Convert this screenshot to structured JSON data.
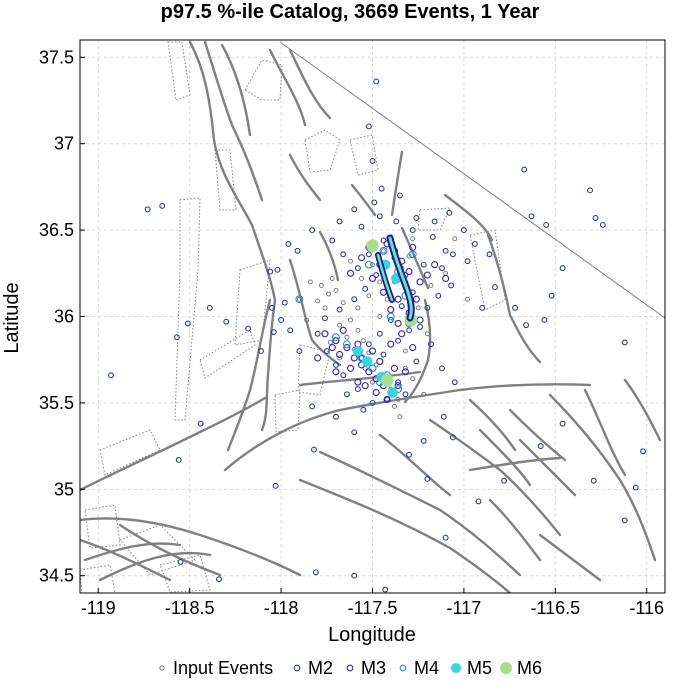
{
  "chart_data": {
    "type": "scatter",
    "title": "p97.5 %-ile Catalog, 3669 Events, 1 Year",
    "xlabel": "Longitude",
    "ylabel": "Latitude",
    "xlim": [
      -119.1,
      -115.9
    ],
    "ylim": [
      34.4,
      37.6
    ],
    "xticks": [
      -119,
      -118.5,
      -118,
      -117.5,
      -117,
      -116.5,
      -116
    ],
    "yticks": [
      34.5,
      35,
      35.5,
      36,
      36.5,
      37,
      37.5
    ],
    "grid": true,
    "legend": {
      "placement": "bottom"
    },
    "series": [
      {
        "name": "Input Events",
        "marker": "small-open-circle",
        "color": "#707070",
        "points": [
          [
            -117.78,
            36.18
          ],
          [
            -117.74,
            36.13
          ],
          [
            -117.72,
            36.22
          ],
          [
            -117.8,
            36.09
          ],
          [
            -117.76,
            36.05
          ],
          [
            -117.7,
            36.15
          ],
          [
            -117.66,
            36.08
          ],
          [
            -117.62,
            35.98
          ],
          [
            -117.68,
            35.95
          ],
          [
            -117.58,
            35.92
          ],
          [
            -117.64,
            35.88
          ],
          [
            -117.55,
            35.86
          ],
          [
            -117.6,
            35.81
          ],
          [
            -117.52,
            35.79
          ],
          [
            -117.48,
            35.72
          ],
          [
            -117.44,
            35.66
          ],
          [
            -117.4,
            35.58
          ],
          [
            -117.36,
            35.52
          ],
          [
            -117.5,
            35.62
          ],
          [
            -117.54,
            35.7
          ],
          [
            -117.46,
            36.0
          ],
          [
            -117.42,
            36.1
          ],
          [
            -117.38,
            36.2
          ],
          [
            -117.34,
            36.28
          ],
          [
            -117.3,
            36.35
          ],
          [
            -117.28,
            36.45
          ],
          [
            -117.44,
            36.38
          ],
          [
            -117.5,
            36.3
          ],
          [
            -117.56,
            36.22
          ],
          [
            -117.62,
            36.32
          ],
          [
            -117.25,
            36.05
          ],
          [
            -117.2,
            35.9
          ],
          [
            -117.32,
            35.8
          ],
          [
            -117.28,
            35.64
          ],
          [
            -117.22,
            35.55
          ],
          [
            -117.35,
            35.42
          ],
          [
            -117.05,
            36.45
          ],
          [
            -117.1,
            36.25
          ],
          [
            -116.98,
            36.1
          ],
          [
            -117.68,
            35.76
          ],
          [
            -117.73,
            35.85
          ],
          [
            -117.86,
            35.98
          ],
          [
            -117.9,
            36.1
          ],
          [
            -117.84,
            36.2
          ],
          [
            -117.58,
            36.05
          ],
          [
            -117.52,
            36.12
          ],
          [
            -117.46,
            36.2
          ],
          [
            -117.4,
            36.46
          ],
          [
            -117.32,
            35.7
          ],
          [
            -117.38,
            35.48
          ],
          [
            -117.18,
            36.18
          ]
        ]
      },
      {
        "name": "M2",
        "marker": "open-circle",
        "color": "#1f3fa0",
        "points": [
          [
            -118.73,
            36.62
          ],
          [
            -118.65,
            36.64
          ],
          [
            -118.93,
            35.66
          ],
          [
            -118.57,
            35.88
          ],
          [
            -118.51,
            35.96
          ],
          [
            -118.39,
            36.05
          ],
          [
            -118.3,
            35.97
          ],
          [
            -118.11,
            35.8
          ],
          [
            -118.06,
            36.26
          ],
          [
            -117.98,
            36.08
          ],
          [
            -117.9,
            35.8
          ],
          [
            -117.83,
            35.48
          ],
          [
            -117.82,
            35.23
          ],
          [
            -117.7,
            35.42
          ],
          [
            -117.6,
            35.33
          ],
          [
            -117.55,
            35.46
          ],
          [
            -117.64,
            35.55
          ],
          [
            -117.56,
            36.52
          ],
          [
            -117.49,
            36.66
          ],
          [
            -117.45,
            36.74
          ],
          [
            -117.5,
            36.9
          ],
          [
            -117.52,
            37.1
          ],
          [
            -117.48,
            37.36
          ],
          [
            -117.35,
            36.7
          ],
          [
            -117.26,
            36.57
          ],
          [
            -117.16,
            36.55
          ],
          [
            -117.08,
            36.6
          ],
          [
            -117.0,
            36.5
          ],
          [
            -116.94,
            36.42
          ],
          [
            -116.86,
            36.36
          ],
          [
            -116.83,
            36.17
          ],
          [
            -116.9,
            36.05
          ],
          [
            -116.72,
            36.05
          ],
          [
            -116.66,
            35.95
          ],
          [
            -116.56,
            35.98
          ],
          [
            -116.52,
            36.12
          ],
          [
            -116.46,
            36.28
          ],
          [
            -116.55,
            36.53
          ],
          [
            -116.67,
            36.85
          ],
          [
            -116.63,
            36.58
          ],
          [
            -116.31,
            36.73
          ],
          [
            -116.28,
            36.57
          ],
          [
            -116.24,
            36.53
          ],
          [
            -116.12,
            35.85
          ],
          [
            -116.02,
            35.22
          ],
          [
            -116.06,
            35.01
          ],
          [
            -116.12,
            34.82
          ],
          [
            -116.29,
            35.05
          ],
          [
            -116.46,
            35.38
          ],
          [
            -116.58,
            35.25
          ],
          [
            -116.78,
            35.05
          ],
          [
            -116.92,
            34.93
          ],
          [
            -117.06,
            35.3
          ],
          [
            -117.11,
            35.42
          ],
          [
            -117.22,
            35.28
          ],
          [
            -117.3,
            35.2
          ],
          [
            -117.2,
            35.06
          ],
          [
            -117.1,
            34.72
          ],
          [
            -117.43,
            34.42
          ],
          [
            -117.6,
            34.5
          ],
          [
            -117.81,
            34.52
          ],
          [
            -118.34,
            34.48
          ],
          [
            -118.55,
            34.58
          ],
          [
            -118.56,
            35.17
          ],
          [
            -118.44,
            35.38
          ],
          [
            -118.03,
            35.02
          ],
          [
            -118.04,
            35.91
          ],
          [
            -118.18,
            35.93
          ],
          [
            -117.95,
            35.92
          ],
          [
            -118.02,
            36.27
          ],
          [
            -117.91,
            36.38
          ],
          [
            -117.96,
            36.42
          ],
          [
            -117.83,
            36.5
          ],
          [
            -117.72,
            36.44
          ],
          [
            -117.66,
            36.36
          ],
          [
            -117.68,
            36.55
          ],
          [
            -117.6,
            36.62
          ],
          [
            -117.46,
            36.58
          ],
          [
            -117.37,
            36.55
          ],
          [
            -117.28,
            36.5
          ],
          [
            -117.17,
            36.46
          ],
          [
            -117.1,
            36.38
          ],
          [
            -116.98,
            36.32
          ],
          [
            -117.07,
            36.18
          ],
          [
            -117.14,
            36.12
          ],
          [
            -117.2,
            36.05
          ],
          [
            -117.24,
            35.94
          ],
          [
            -117.18,
            35.84
          ],
          [
            -117.26,
            35.74
          ],
          [
            -117.12,
            35.7
          ],
          [
            -117.05,
            35.62
          ],
          [
            -117.36,
            35.62
          ],
          [
            -117.32,
            35.55
          ],
          [
            -117.42,
            35.52
          ],
          [
            -117.5,
            35.5
          ],
          [
            -117.58,
            35.58
          ],
          [
            -117.66,
            35.66
          ],
          [
            -117.7,
            35.72
          ],
          [
            -117.75,
            35.8
          ],
          [
            -117.8,
            35.9
          ],
          [
            -117.76,
            35.99
          ],
          [
            -117.68,
            36.04
          ],
          [
            -117.6,
            36.1
          ],
          [
            -117.54,
            36.16
          ],
          [
            -117.48,
            36.24
          ],
          [
            -117.52,
            36.36
          ],
          [
            -117.58,
            36.28
          ],
          [
            -117.44,
            36.44
          ],
          [
            -117.38,
            36.34
          ],
          [
            -117.32,
            36.24
          ],
          [
            -117.28,
            36.14
          ],
          [
            -117.34,
            36.06
          ],
          [
            -117.4,
            35.98
          ],
          [
            -117.46,
            35.9
          ],
          [
            -117.52,
            35.84
          ],
          [
            -117.56,
            35.76
          ],
          [
            -117.44,
            35.78
          ],
          [
            -117.36,
            35.86
          ],
          [
            -117.3,
            35.92
          ],
          [
            -117.22,
            36.3
          ],
          [
            -117.12,
            36.28
          ],
          [
            -117.06,
            36.36
          ],
          [
            -118.05,
            36.05
          ],
          [
            -118.0,
            35.98
          ]
        ]
      },
      {
        "name": "M3",
        "marker": "open-circle",
        "color": "#3a1fa8",
        "points": [
          [
            -117.76,
            35.9
          ],
          [
            -117.7,
            35.86
          ],
          [
            -117.64,
            35.82
          ],
          [
            -117.6,
            35.76
          ],
          [
            -117.56,
            35.72
          ],
          [
            -117.52,
            35.68
          ],
          [
            -117.48,
            35.64
          ],
          [
            -117.44,
            35.6
          ],
          [
            -117.4,
            35.56
          ],
          [
            -117.36,
            35.6
          ],
          [
            -117.54,
            35.6
          ],
          [
            -117.62,
            35.7
          ],
          [
            -117.68,
            35.78
          ],
          [
            -117.72,
            35.82
          ],
          [
            -117.5,
            35.8
          ],
          [
            -117.46,
            35.74
          ],
          [
            -117.58,
            35.84
          ],
          [
            -117.66,
            35.92
          ],
          [
            -117.42,
            36.42
          ],
          [
            -117.38,
            36.38
          ],
          [
            -117.34,
            36.32
          ],
          [
            -117.3,
            36.26
          ],
          [
            -117.32,
            36.18
          ],
          [
            -117.36,
            36.1
          ],
          [
            -117.4,
            36.04
          ],
          [
            -117.36,
            35.96
          ],
          [
            -117.3,
            36.02
          ],
          [
            -117.26,
            36.1
          ],
          [
            -117.46,
            36.3
          ],
          [
            -117.5,
            36.22
          ],
          [
            -117.44,
            36.14
          ],
          [
            -117.28,
            36.4
          ],
          [
            -117.24,
            36.2
          ],
          [
            -117.34,
            35.9
          ],
          [
            -117.4,
            35.84
          ],
          [
            -117.28,
            35.82
          ],
          [
            -117.32,
            35.68
          ],
          [
            -117.38,
            35.7
          ],
          [
            -117.2,
            36.24
          ],
          [
            -117.16,
            36.3
          ],
          [
            -117.52,
            36.4
          ],
          [
            -117.56,
            36.34
          ],
          [
            -117.24,
            35.98
          ],
          [
            -117.42,
            35.52
          ],
          [
            -117.48,
            35.56
          ],
          [
            -117.58,
            35.62
          ],
          [
            -117.7,
            35.68
          ],
          [
            -117.8,
            35.76
          ],
          [
            -117.62,
            36.25
          ],
          [
            -117.1,
            36.22
          ]
        ]
      },
      {
        "name": "M4",
        "marker": "open-circle",
        "color": "#1e90c8",
        "points": [
          [
            -117.44,
            36.38
          ],
          [
            -117.36,
            36.26
          ],
          [
            -117.32,
            36.12
          ],
          [
            -117.4,
            36.0
          ],
          [
            -117.3,
            35.96
          ],
          [
            -117.56,
            35.76
          ],
          [
            -117.5,
            35.7
          ],
          [
            -117.46,
            35.62
          ],
          [
            -117.64,
            35.84
          ],
          [
            -117.7,
            35.88
          ],
          [
            -117.9,
            36.1
          ],
          [
            -117.52,
            36.3
          ],
          [
            -117.36,
            35.58
          ],
          [
            -117.42,
            35.66
          ],
          [
            -117.28,
            36.36
          ]
        ]
      },
      {
        "name": "M5",
        "marker": "filled-circle",
        "color": "#35d6e0",
        "points": [
          [
            -117.43,
            36.3
          ],
          [
            -117.37,
            36.22
          ],
          [
            -117.45,
            35.65
          ],
          [
            -117.53,
            35.74
          ],
          [
            -117.58,
            35.8
          ],
          [
            -117.39,
            35.56
          ]
        ]
      },
      {
        "name": "M6",
        "marker": "filled-circle",
        "color": "#a8e08a",
        "points": [
          [
            -117.5,
            36.41
          ],
          [
            -117.29,
            35.98
          ],
          [
            -117.42,
            35.63
          ]
        ]
      }
    ]
  }
}
